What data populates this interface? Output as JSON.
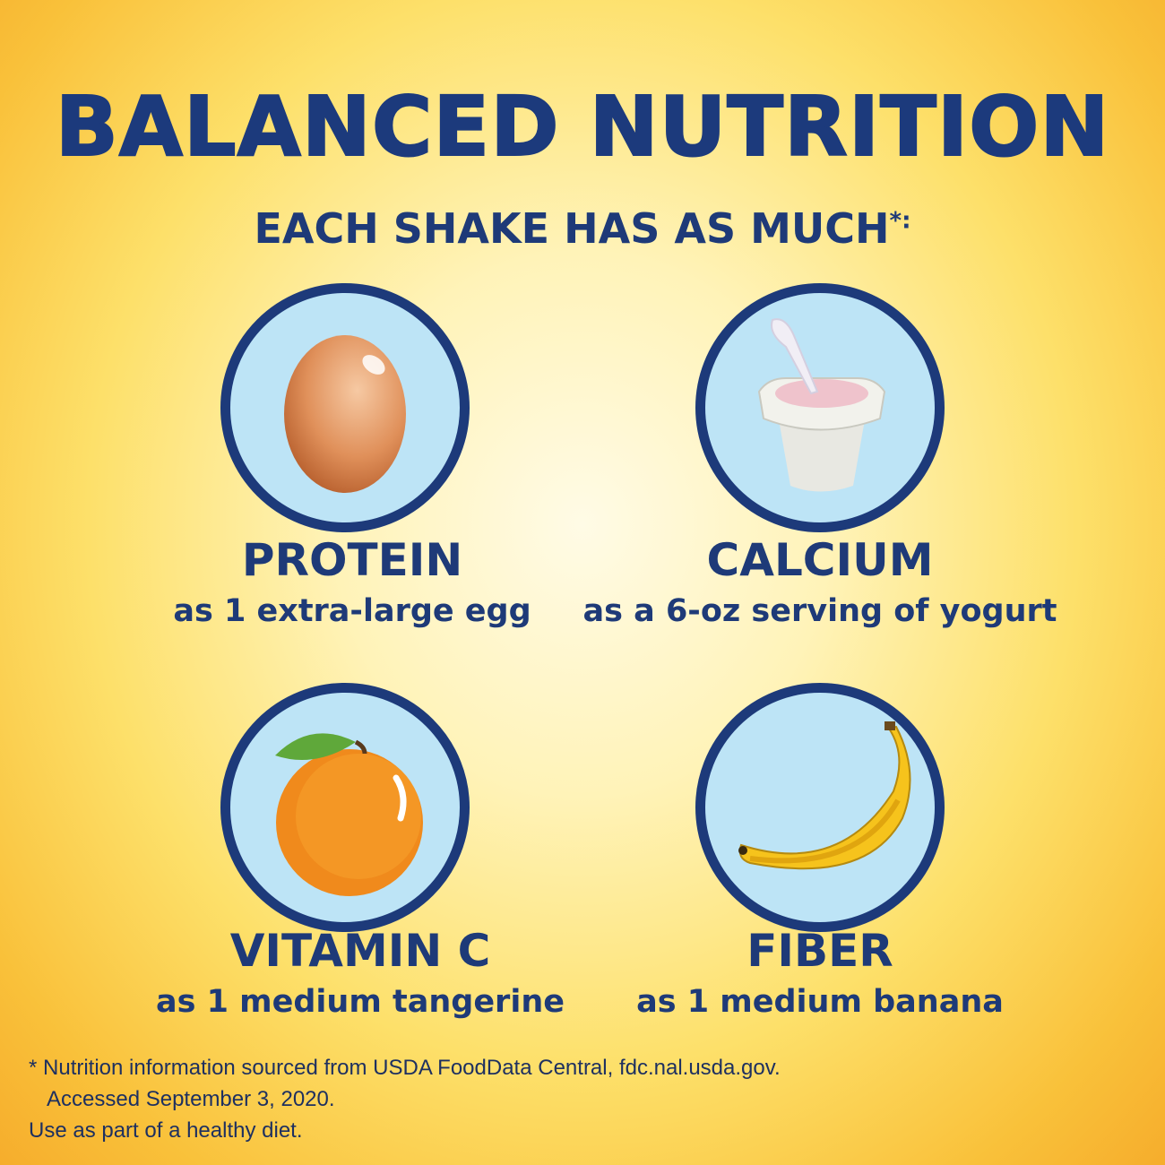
{
  "title": "BALANCED NUTRITION",
  "subtitle": "EACH SHAKE HAS AS MUCH",
  "subtitle_mark": "*:",
  "items": [
    {
      "name": "PROTEIN",
      "desc": "as 1 extra-large egg",
      "icon": "egg-icon"
    },
    {
      "name": "CALCIUM",
      "desc": "as a 6-oz serving of yogurt",
      "icon": "yogurt-icon"
    },
    {
      "name": "VITAMIN C",
      "desc": "as 1 medium tangerine",
      "icon": "tangerine-icon"
    },
    {
      "name": "FIBER",
      "desc": "as 1 medium banana",
      "icon": "banana-icon"
    }
  ],
  "footnote": {
    "line1": "* Nutrition information sourced from USDA FoodData Central, fdc.nal.usda.gov.",
    "line2": "Accessed September 3, 2020.",
    "line3": "Use as part of a healthy diet."
  },
  "colors": {
    "navy": "#1d3a7a",
    "circle_fill": "#bde4f6",
    "background": "#fde06a"
  }
}
